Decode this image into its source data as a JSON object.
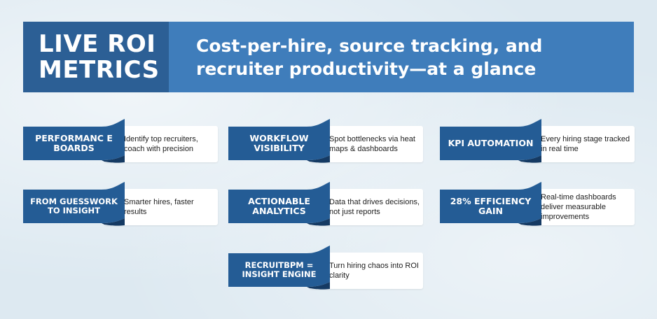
{
  "banner": {
    "title_line1": "LIVE ROI",
    "title_line2": "METRICS",
    "subtitle_line1": "Cost-per-hire, source tracking, and",
    "subtitle_line2": "recruiter productivity—at a glance"
  },
  "colors": {
    "banner_dark": "#2c5f95",
    "banner_light": "#3f7dbb",
    "tag_fill": "#245c95",
    "tag_fold": "#153a63",
    "background": "#dde9f1"
  },
  "cards": [
    {
      "title": "PERFORMANC E BOARDS",
      "description": "Identify top recruiters, coach with precision"
    },
    {
      "title": "WORKFLOW VISIBILITY",
      "description": "Spot bottlenecks via heat maps & dashboards"
    },
    {
      "title": "KPI AUTOMATION",
      "description": "Every hiring stage tracked in real time"
    },
    {
      "title": "FROM GUESSWORK TO INSIGHT",
      "description": "Smarter hires, faster results"
    },
    {
      "title": "ACTIONABLE ANALYTICS",
      "description": "Data that drives decisions, not just reports"
    },
    {
      "title": "28% EFFICIENCY GAIN",
      "description": "Real-time dashboards deliver measurable improvements"
    },
    {
      "title": "RECRUITBPM = INSIGHT ENGINE",
      "description": "Turn hiring chaos into ROI clarity"
    }
  ]
}
